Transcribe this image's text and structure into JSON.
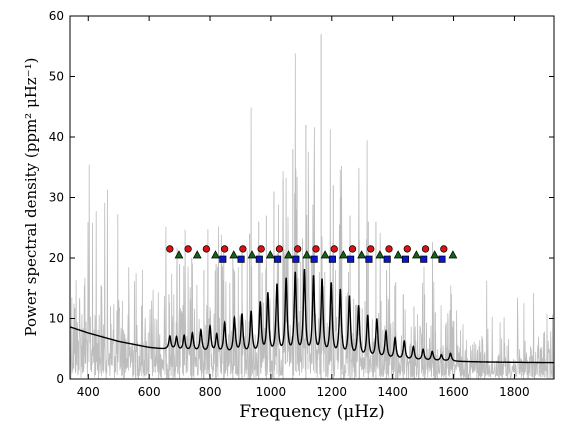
{
  "chart_data": {
    "type": "line",
    "xlabel": "Frequency (μHz)",
    "ylabel": "Power spectral density (ppm² μHz⁻¹)",
    "xlim": [
      340,
      1930
    ],
    "ylim": [
      0,
      60
    ],
    "xticks": [
      400,
      600,
      800,
      1000,
      1200,
      1400,
      1600,
      1800
    ],
    "yticks": [
      0,
      10,
      20,
      30,
      40,
      50,
      60
    ],
    "grid": false,
    "colors": {
      "spectrum": "#bdbdbd",
      "fit": "#000000",
      "circle": "#dd1111",
      "triangle": "#116611",
      "square": "#0a16cc"
    },
    "background_fit": {
      "x": [
        340,
        400,
        500,
        600,
        700,
        800,
        900,
        1000,
        1100,
        1200,
        1300,
        1400,
        1500,
        1600,
        1700,
        1800,
        1930
      ],
      "y": [
        8.6,
        7.6,
        6.2,
        5.2,
        4.6,
        4.2,
        3.9,
        3.7,
        3.5,
        3.35,
        3.2,
        3.1,
        3.0,
        2.9,
        2.8,
        2.75,
        2.7
      ]
    },
    "fit_peaks": {
      "x": [
        668,
        690,
        715,
        742,
        770,
        800,
        822,
        848,
        880,
        905,
        935,
        965,
        990,
        1020,
        1050,
        1080,
        1110,
        1140,
        1168,
        1198,
        1228,
        1258,
        1288,
        1318,
        1348,
        1378,
        1408,
        1438,
        1468,
        1500,
        1530,
        1560,
        1590
      ],
      "height": [
        2.2,
        2.2,
        2.5,
        3.0,
        3.6,
        4.3,
        3.0,
        5.0,
        5.8,
        6.5,
        7.0,
        8.5,
        10.0,
        11.5,
        12.5,
        13.5,
        14.0,
        13.0,
        12.5,
        12.0,
        11.0,
        10.0,
        8.5,
        7.0,
        6.5,
        4.5,
        3.5,
        3.0,
        2.2,
        1.8,
        1.5,
        1.0,
        1.3
      ]
    },
    "mode_ids": {
      "circles_l0": [
        668,
        728,
        788,
        848,
        908,
        968,
        1028,
        1088,
        1148,
        1208,
        1268,
        1328,
        1388,
        1448,
        1508,
        1568
      ],
      "triangles_l1": [
        698,
        758,
        818,
        878,
        938,
        998,
        1058,
        1118,
        1178,
        1238,
        1298,
        1358,
        1418,
        1478,
        1538,
        1598
      ],
      "squares_l2": [
        842,
        902,
        962,
        1022,
        1082,
        1142,
        1202,
        1262,
        1322,
        1382,
        1442,
        1502,
        1562
      ],
      "y_circle": 21.5,
      "y_triangle": 20.5,
      "y_square": 19.8
    },
    "spectrum_spikes": [
      {
        "x": 1165,
        "y": 57
      },
      {
        "x": 1115,
        "y": 42
      },
      {
        "x": 1072,
        "y": 38
      },
      {
        "x": 1040,
        "y": 33
      },
      {
        "x": 1010,
        "y": 31
      },
      {
        "x": 1205,
        "y": 32
      },
      {
        "x": 1230,
        "y": 30
      },
      {
        "x": 1260,
        "y": 27
      },
      {
        "x": 985,
        "y": 27
      },
      {
        "x": 960,
        "y": 26
      },
      {
        "x": 930,
        "y": 24
      },
      {
        "x": 905,
        "y": 22
      },
      {
        "x": 1290,
        "y": 23
      },
      {
        "x": 1320,
        "y": 26
      },
      {
        "x": 1345,
        "y": 26
      },
      {
        "x": 875,
        "y": 21
      },
      {
        "x": 845,
        "y": 22
      },
      {
        "x": 1380,
        "y": 18
      },
      {
        "x": 1410,
        "y": 16
      },
      {
        "x": 820,
        "y": 19
      },
      {
        "x": 780,
        "y": 18
      },
      {
        "x": 1435,
        "y": 14
      },
      {
        "x": 1470,
        "y": 12
      },
      {
        "x": 740,
        "y": 20
      },
      {
        "x": 700,
        "y": 19
      },
      {
        "x": 665,
        "y": 14
      },
      {
        "x": 1505,
        "y": 14
      },
      {
        "x": 1540,
        "y": 11
      },
      {
        "x": 1575,
        "y": 9
      }
    ]
  }
}
